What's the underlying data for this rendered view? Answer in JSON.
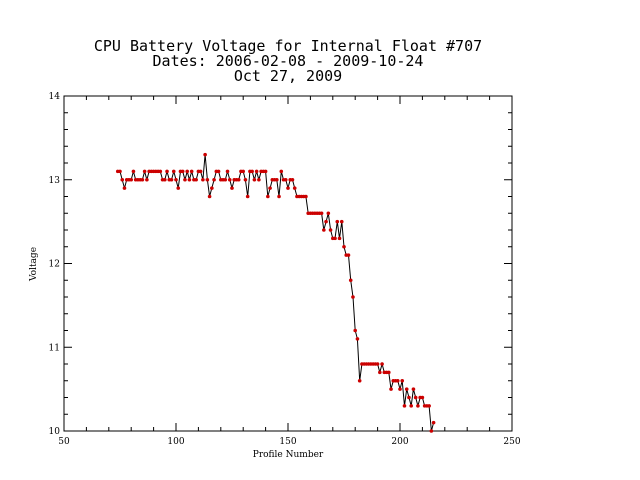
{
  "chart_data": {
    "type": "line",
    "title_lines": [
      "CPU Battery Voltage for Internal Float #707",
      "Dates:  2006-02-08 -  2009-10-24",
      "Oct 27, 2009"
    ],
    "xlabel": "Profile Number",
    "ylabel": "Voltage",
    "xlim": [
      50,
      250
    ],
    "ylim": [
      10,
      14
    ],
    "x_ticks": [
      50,
      100,
      150,
      200,
      250
    ],
    "y_ticks": [
      10,
      11,
      12,
      13,
      14
    ],
    "x_minor_step": 10,
    "y_minor_step": 0.2,
    "line_color": "#000000",
    "marker_color": "#cc0000",
    "grid": false,
    "series": [
      {
        "x": [
          74,
          75,
          76,
          77,
          78,
          79,
          80,
          81,
          82,
          83,
          84,
          85,
          86,
          87,
          88,
          89,
          90,
          91,
          92,
          93,
          94,
          95,
          96,
          97,
          98,
          99,
          100,
          101,
          102,
          103,
          104,
          105,
          106,
          107,
          108,
          109,
          110,
          111,
          112,
          113,
          114,
          115,
          116,
          117,
          118,
          119,
          120,
          121,
          122,
          123,
          124,
          125,
          126,
          127,
          128,
          129,
          130,
          131,
          132,
          133,
          134,
          135,
          136,
          137,
          138,
          139,
          140,
          141,
          142,
          143,
          144,
          145,
          146,
          147,
          148,
          149,
          150,
          151,
          152,
          153,
          154,
          155,
          156,
          157,
          158,
          159,
          160,
          161,
          162,
          163,
          164,
          165,
          166,
          167,
          168,
          169,
          170,
          171,
          172,
          173,
          174,
          175,
          176,
          177,
          178,
          179,
          180,
          181,
          182,
          183,
          184,
          185,
          186,
          187,
          188,
          189,
          190,
          191,
          192,
          193,
          194,
          195,
          196,
          197,
          198,
          199,
          200,
          201,
          202,
          203,
          204,
          205,
          206,
          207,
          208,
          209,
          210,
          211,
          212,
          213,
          214,
          215
        ],
        "y": [
          13.1,
          13.1,
          13.0,
          12.9,
          13.0,
          13.0,
          13.0,
          13.1,
          13.0,
          13.0,
          13.0,
          13.0,
          13.1,
          13.0,
          13.1,
          13.1,
          13.1,
          13.1,
          13.1,
          13.1,
          13.0,
          13.0,
          13.1,
          13.0,
          13.0,
          13.1,
          13.0,
          12.9,
          13.1,
          13.1,
          13.0,
          13.1,
          13.0,
          13.1,
          13.0,
          13.0,
          13.1,
          13.1,
          13.0,
          13.3,
          13.0,
          12.8,
          12.9,
          13.0,
          13.1,
          13.1,
          13.0,
          13.0,
          13.0,
          13.1,
          13.0,
          12.9,
          13.0,
          13.0,
          13.0,
          13.1,
          13.1,
          13.0,
          12.8,
          13.1,
          13.1,
          13.0,
          13.1,
          13.0,
          13.1,
          13.1,
          13.1,
          12.8,
          12.9,
          13.0,
          13.0,
          13.0,
          12.8,
          13.1,
          13.0,
          13.0,
          12.9,
          13.0,
          13.0,
          12.9,
          12.8,
          12.8,
          12.8,
          12.8,
          12.8,
          12.6,
          12.6,
          12.6,
          12.6,
          12.6,
          12.6,
          12.6,
          12.4,
          12.5,
          12.6,
          12.4,
          12.3,
          12.3,
          12.5,
          12.3,
          12.5,
          12.2,
          12.1,
          12.1,
          11.8,
          11.6,
          11.2,
          11.1,
          10.6,
          10.8,
          10.8,
          10.8,
          10.8,
          10.8,
          10.8,
          10.8,
          10.8,
          10.7,
          10.8,
          10.7,
          10.7,
          10.7,
          10.5,
          10.6,
          10.6,
          10.6,
          10.5,
          10.6,
          10.3,
          10.5,
          10.4,
          10.3,
          10.5,
          10.4,
          10.3,
          10.4,
          10.4,
          10.3,
          10.3,
          10.3,
          10.0,
          10.1
        ]
      }
    ]
  }
}
